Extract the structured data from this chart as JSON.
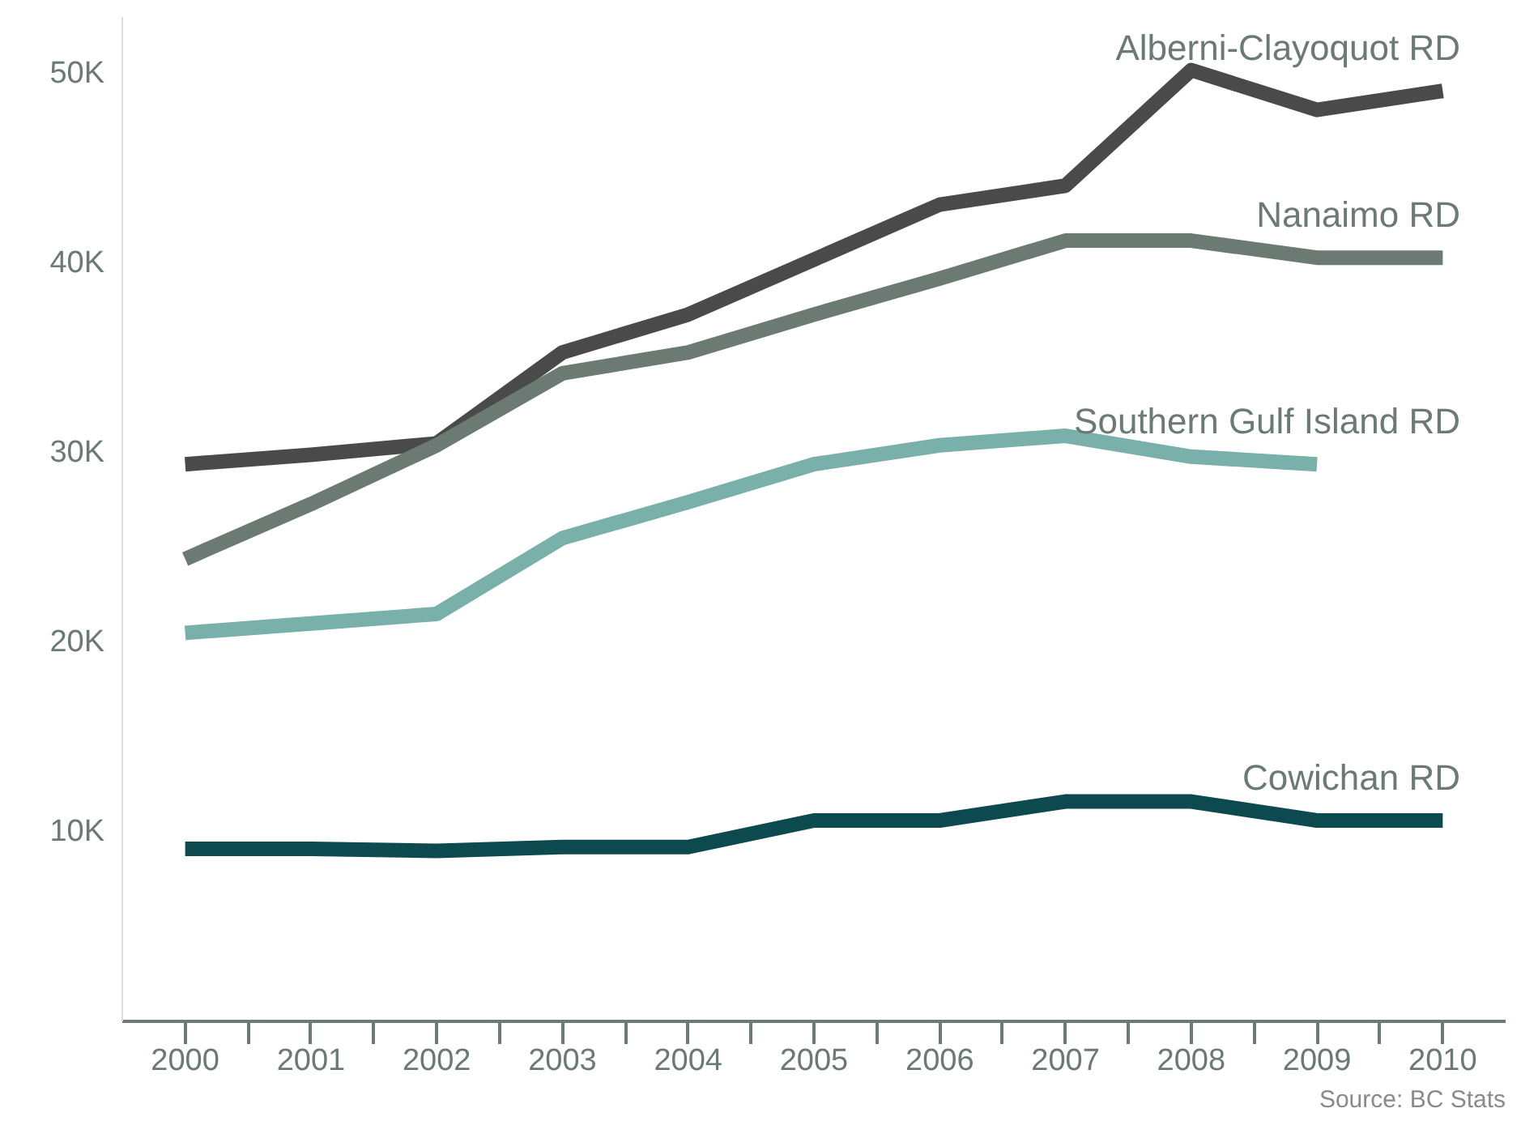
{
  "chart_data": {
    "type": "line",
    "x": [
      2000,
      2001,
      2002,
      2003,
      2004,
      2005,
      2006,
      2007,
      2008,
      2009,
      2010
    ],
    "series": [
      {
        "name": "Alberni-Clayoquot RD",
        "color": "#4a4a4a",
        "values": [
          29400,
          29900,
          30500,
          35300,
          37300,
          40200,
          43100,
          44100,
          50200,
          48100,
          49100
        ]
      },
      {
        "name": "Nanaimo RD",
        "color": "#6b7a72",
        "values": [
          24400,
          27300,
          30400,
          34200,
          35300,
          37300,
          39200,
          41200,
          41200,
          40300,
          40300
        ]
      },
      {
        "name": "Southern Gulf Island RD",
        "color": "#79b0aa",
        "values": [
          20500,
          21000,
          21500,
          25500,
          27400,
          29400,
          30400,
          30900,
          29800,
          29400,
          null
        ]
      },
      {
        "name": "Cowichan RD",
        "color": "#0d4a4f",
        "values": [
          9100,
          9100,
          9000,
          9200,
          9200,
          10600,
          10600,
          11600,
          11600,
          10600,
          10600
        ]
      }
    ],
    "xlim": [
      1999.5,
      2010.5
    ],
    "xticks": [
      2000,
      {
        "value": 2000.5,
        "label": null
      },
      2001,
      {
        "value": 2001.5,
        "label": null
      },
      2002,
      {
        "value": 2002.5,
        "label": null
      },
      2003,
      {
        "value": 2003.5,
        "label": null
      },
      2004,
      {
        "value": 2004.5,
        "label": null
      },
      2005,
      {
        "value": 2005.5,
        "label": null
      },
      2006,
      {
        "value": 2006.5,
        "label": null
      },
      2007,
      {
        "value": 2007.5,
        "label": null
      },
      2008,
      {
        "value": 2008.5,
        "label": null
      },
      2009,
      {
        "value": 2009.5,
        "label": null
      },
      2010
    ],
    "ylim": [
      0,
      53000
    ],
    "yticks": [
      {
        "value": 10000,
        "label": "10K"
      },
      {
        "value": 20000,
        "label": "20K"
      },
      {
        "value": 30000,
        "label": "30K"
      },
      {
        "value": 40000,
        "label": "40K"
      },
      {
        "value": 50000,
        "label": "50K"
      }
    ],
    "grid": false,
    "marker": "none",
    "line_style": "solid",
    "annotations": [
      "Source: BC Stats"
    ]
  }
}
